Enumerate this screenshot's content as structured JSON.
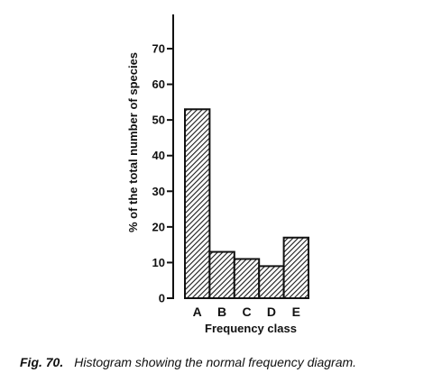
{
  "chart_data": {
    "type": "bar",
    "categories": [
      "A",
      "B",
      "C",
      "D",
      "E"
    ],
    "values": [
      53,
      13,
      11,
      9,
      17
    ],
    "xlabel": "Frequency class",
    "ylabel": "% of the total number of species",
    "ylim": [
      0,
      70
    ],
    "yticks": [
      0,
      10,
      20,
      30,
      40,
      50,
      60,
      70
    ],
    "grid": false,
    "legend": "none",
    "bar_fill": "hatched",
    "color": "#111111"
  },
  "caption": {
    "label": "Fig. 70.",
    "text": "Histogram showing the normal frequency diagram."
  }
}
